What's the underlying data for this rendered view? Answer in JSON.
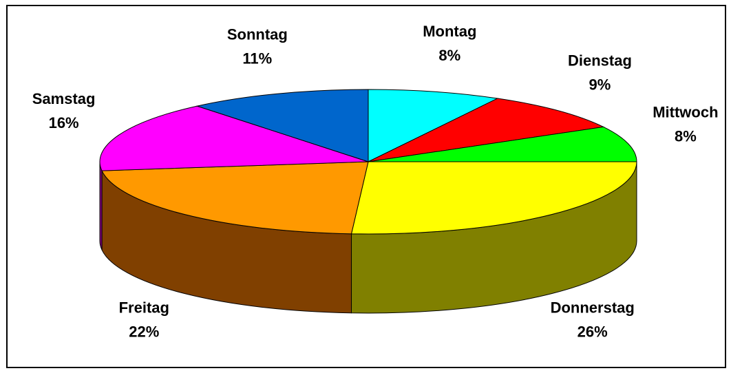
{
  "chart_data": {
    "type": "pie3d",
    "categories": [
      "Montag",
      "Dienstag",
      "Mittwoch",
      "Donnerstag",
      "Freitag",
      "Samstag",
      "Sonntag"
    ],
    "values": [
      8,
      9,
      8,
      26,
      22,
      16,
      11
    ],
    "value_labels": [
      "8%",
      "9%",
      "8%",
      "26%",
      "22%",
      "16%",
      "11%"
    ],
    "colors": [
      "#00ffff",
      "#ff0000",
      "#00ff00",
      "#ffff00",
      "#ff9900",
      "#ff00ff",
      "#0066cc"
    ],
    "side_colors": [
      "#008080",
      "#800000",
      "#008000",
      "#808000",
      "#804000",
      "#800080",
      "#003366"
    ]
  }
}
